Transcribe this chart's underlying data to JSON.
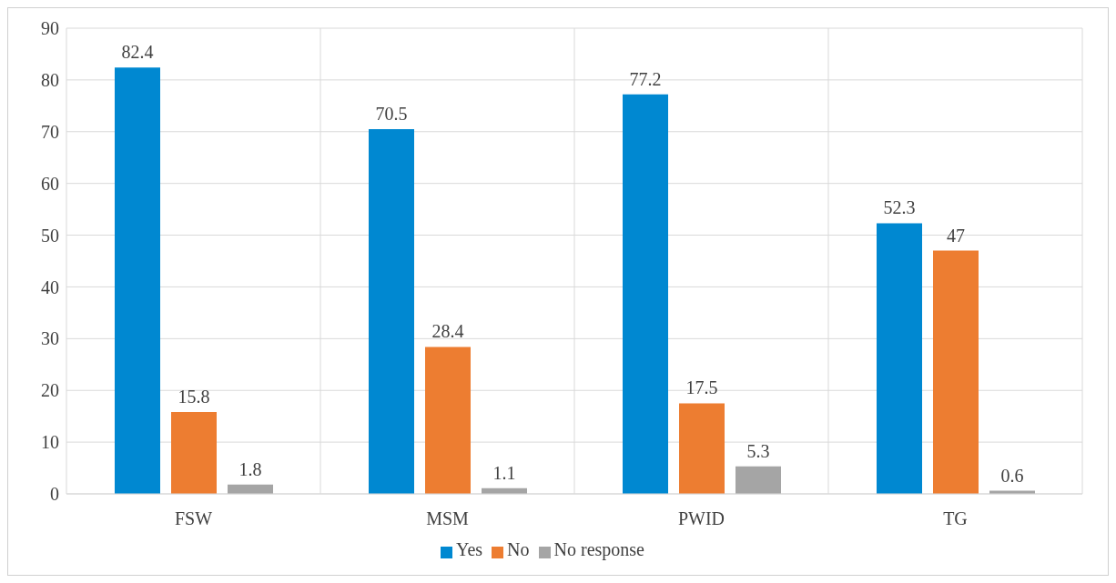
{
  "chart_data": {
    "type": "bar",
    "categories": [
      "FSW",
      "MSM",
      "PWID",
      "TG"
    ],
    "series": [
      {
        "name": "Yes",
        "color": "#0088d1",
        "values": [
          82.4,
          70.5,
          77.2,
          52.3
        ]
      },
      {
        "name": "No",
        "color": "#ed7d31",
        "values": [
          15.8,
          28.4,
          17.5,
          47
        ]
      },
      {
        "name": "No response",
        "color": "#a5a5a5",
        "values": [
          1.8,
          1.1,
          5.3,
          0.6
        ]
      }
    ],
    "ylim": [
      0,
      90
    ],
    "yticks": [
      0,
      10,
      20,
      30,
      40,
      50,
      60,
      70,
      80,
      90
    ],
    "grid": true,
    "legend": "bottom",
    "data_labels": true
  }
}
